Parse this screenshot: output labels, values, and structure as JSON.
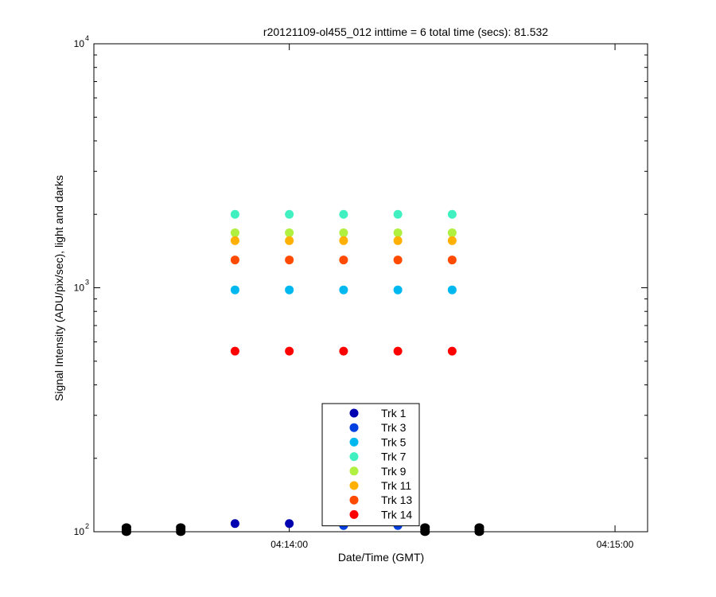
{
  "chart_data": {
    "type": "scatter",
    "title": "r20121109-ol455_012 inttime = 6 total time (secs): 81.532",
    "xlabel": "Date/Time (GMT)",
    "ylabel": "Signal Intensity (ADU/pix/sec), light and darks",
    "yscale": "log",
    "ylim": [
      100,
      10000
    ],
    "xlim": [
      "04:13:24",
      "04:15:06"
    ],
    "y_ticks": [
      {
        "base": "10",
        "exp": "2",
        "value": 100
      },
      {
        "base": "10",
        "exp": "3",
        "value": 1000
      },
      {
        "base": "10",
        "exp": "4",
        "value": 10000
      }
    ],
    "x_ticks": [
      {
        "label": "04:14:00",
        "value": "04:14:00"
      },
      {
        "label": "04:15:00",
        "value": "04:15:00"
      }
    ],
    "legend_position": "bottom-center",
    "dark_frames": {
      "color": "#000000",
      "x": [
        "04:13:30",
        "04:13:40",
        "04:14:25",
        "04:14:35"
      ],
      "y": [
        102,
        102,
        102,
        102
      ]
    },
    "series": [
      {
        "name": "Trk 1",
        "color": "#0000b0",
        "x": [
          "04:13:50",
          "04:14:00",
          "04:14:10",
          "04:14:20"
        ],
        "y": [
          108,
          108,
          108,
          108
        ]
      },
      {
        "name": "Trk 3",
        "color": "#0040e0",
        "x": [
          "04:14:10",
          "04:14:20"
        ],
        "y": [
          106,
          106
        ]
      },
      {
        "name": "Trk 5",
        "color": "#00b8f0",
        "x": [
          "04:13:50",
          "04:14:00",
          "04:14:10",
          "04:14:20",
          "04:14:30"
        ],
        "y": [
          980,
          980,
          980,
          980,
          980
        ]
      },
      {
        "name": "Trk 7",
        "color": "#40f0c0",
        "x": [
          "04:13:50",
          "04:14:00",
          "04:14:10",
          "04:14:20",
          "04:14:30"
        ],
        "y": [
          2000,
          2000,
          2000,
          2000,
          2000
        ]
      },
      {
        "name": "Trk 9",
        "color": "#b0f040",
        "x": [
          "04:13:50",
          "04:14:00",
          "04:14:10",
          "04:14:20",
          "04:14:30"
        ],
        "y": [
          1680,
          1680,
          1680,
          1680,
          1680
        ]
      },
      {
        "name": "Trk 11",
        "color": "#ffb000",
        "x": [
          "04:13:50",
          "04:14:00",
          "04:14:10",
          "04:14:20",
          "04:14:30"
        ],
        "y": [
          1560,
          1560,
          1560,
          1560,
          1560
        ]
      },
      {
        "name": "Trk 13",
        "color": "#ff4a00",
        "x": [
          "04:13:50",
          "04:14:00",
          "04:14:10",
          "04:14:20",
          "04:14:30"
        ],
        "y": [
          1300,
          1300,
          1300,
          1300,
          1300
        ]
      },
      {
        "name": "Trk 14",
        "color": "#ff0000",
        "x": [
          "04:13:50",
          "04:14:00",
          "04:14:10",
          "04:14:20",
          "04:14:30"
        ],
        "y": [
          550,
          550,
          550,
          550,
          550
        ]
      }
    ]
  }
}
